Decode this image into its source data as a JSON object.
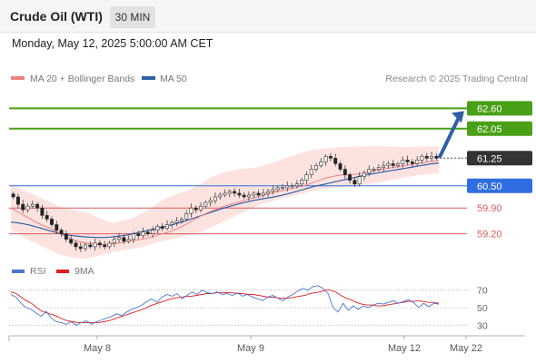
{
  "header": {
    "title": "Crude Oil (WTI)",
    "timeframe": "30 MIN"
  },
  "datetime": "Monday, May 12, 2025 5:00:00 AM CET",
  "legend": {
    "items": [
      {
        "label": "MA 20 + Bollinger Bands",
        "color": "#f08080"
      },
      {
        "label": "MA 50",
        "color": "#2f5fa7"
      }
    ],
    "copyright": "Research © 2025 Trading Central"
  },
  "rsi_legend": {
    "items": [
      {
        "label": "RSI",
        "color": "#4a74d4"
      },
      {
        "label": "9MA",
        "color": "#e02020"
      }
    ]
  },
  "chart_data": [
    {
      "type": "candlestick",
      "title": "Crude Oil (WTI)",
      "ylim": [
        58.7,
        63.2
      ],
      "levels": [
        {
          "value": 62.6,
          "label": "62.60",
          "kind": "resistance",
          "color": "#4aa017"
        },
        {
          "value": 62.05,
          "label": "62.05",
          "kind": "resistance",
          "color": "#4aa017"
        },
        {
          "value": 61.25,
          "label": "61.25",
          "kind": "last",
          "color": "#333333"
        },
        {
          "value": 60.5,
          "label": "60.50",
          "kind": "pivot",
          "color": "#2f6ee0"
        },
        {
          "value": 59.9,
          "label": "59.90",
          "kind": "support",
          "color": "#e05a5a"
        },
        {
          "value": 59.2,
          "label": "59.20",
          "kind": "support",
          "color": "#e05a5a"
        }
      ],
      "x_ticks": [
        "May 8",
        "May 9",
        "May 12",
        "May 22"
      ],
      "close": [
        60.2,
        60.0,
        59.85,
        59.95,
        60.0,
        59.9,
        59.7,
        59.6,
        59.45,
        59.3,
        59.2,
        59.05,
        58.95,
        58.85,
        58.8,
        58.9,
        58.85,
        58.95,
        58.9,
        58.85,
        58.95,
        59.05,
        59.1,
        59.0,
        59.05,
        59.2,
        59.15,
        59.25,
        59.2,
        59.3,
        59.4,
        59.35,
        59.45,
        59.5,
        59.55,
        59.6,
        59.75,
        59.9,
        59.85,
        59.95,
        60.05,
        60.1,
        60.2,
        60.25,
        60.3,
        60.35,
        60.3,
        60.25,
        60.2,
        60.25,
        60.3,
        60.25,
        60.3,
        60.35,
        60.4,
        60.45,
        60.45,
        60.5,
        60.5,
        60.55,
        60.65,
        60.8,
        60.95,
        61.05,
        61.15,
        61.3,
        61.25,
        61.1,
        60.95,
        60.8,
        60.65,
        60.55,
        60.75,
        60.85,
        60.95,
        60.95,
        61.0,
        61.05,
        61.1,
        61.05,
        61.1,
        61.2,
        61.15,
        61.1,
        61.2,
        61.3,
        61.25,
        61.3,
        61.25
      ],
      "ma20": [
        59.9,
        59.8,
        59.7,
        59.6,
        59.5,
        59.42,
        59.35,
        59.25,
        59.15,
        59.07,
        59.0,
        58.96,
        58.94,
        58.92,
        58.91,
        58.92,
        58.94,
        58.97,
        59.0,
        59.03,
        59.06,
        59.1,
        59.15,
        59.2,
        59.25,
        59.32,
        59.4,
        59.5,
        59.6,
        59.7,
        59.78,
        59.85,
        59.92,
        59.98,
        60.03,
        60.08,
        60.13,
        60.18,
        60.23,
        60.28,
        60.33,
        60.36,
        60.4,
        60.44,
        60.48,
        60.53,
        60.6,
        60.66,
        60.72,
        60.76,
        60.79,
        60.8,
        60.81,
        60.83,
        60.86,
        60.9,
        60.94,
        60.97,
        61.0,
        61.03,
        61.05,
        61.08,
        61.11,
        61.14,
        61.17,
        61.19
      ],
      "ma50": [
        59.52,
        59.5,
        59.47,
        59.43,
        59.38,
        59.33,
        59.28,
        59.23,
        59.19,
        59.16,
        59.14,
        59.12,
        59.11,
        59.1,
        59.1,
        59.11,
        59.13,
        59.15,
        59.18,
        59.22,
        59.26,
        59.3,
        59.34,
        59.38,
        59.42,
        59.47,
        59.52,
        59.58,
        59.64,
        59.7,
        59.76,
        59.82,
        59.88,
        59.93,
        59.98,
        60.03,
        60.07,
        60.11,
        60.14,
        60.17,
        60.2,
        60.24,
        60.28,
        60.33,
        60.38,
        60.43,
        60.48,
        60.52,
        60.56,
        60.6,
        60.64,
        60.68,
        60.72,
        60.76,
        60.8,
        60.83,
        60.86,
        60.89,
        60.92,
        60.95,
        60.98,
        61.01,
        61.04,
        61.07,
        61.1,
        61.12
      ],
      "bb_upper": [
        60.5,
        60.45,
        60.35,
        60.25,
        60.15,
        60.05,
        59.95,
        59.9,
        59.85,
        59.8,
        59.75,
        59.65,
        59.55,
        59.5,
        59.55,
        59.6,
        59.7,
        59.8,
        59.95,
        60.1,
        60.2,
        60.28,
        60.35,
        60.45,
        60.55,
        60.7,
        60.8,
        60.88,
        60.92,
        60.96,
        60.98,
        61.0,
        61.05,
        61.12,
        61.2,
        61.28,
        61.35,
        61.42,
        61.47,
        61.5,
        61.52,
        61.54,
        61.55,
        61.56,
        61.57,
        61.57,
        61.58,
        61.57,
        61.56,
        61.55,
        61.55,
        61.56,
        61.57,
        61.57,
        61.57
      ],
      "bb_lower": [
        59.3,
        59.2,
        59.05,
        58.95,
        58.85,
        58.75,
        58.65,
        58.6,
        58.55,
        58.52,
        58.55,
        58.6,
        58.66,
        58.72,
        58.75,
        58.78,
        58.82,
        58.88,
        58.95,
        59.0,
        59.05,
        59.1,
        59.15,
        59.2,
        59.25,
        59.35,
        59.45,
        59.55,
        59.65,
        59.75,
        59.85,
        59.95,
        60.02,
        60.08,
        60.15,
        60.2,
        60.25,
        60.3,
        60.35,
        60.4,
        60.42,
        60.45,
        60.45,
        60.48,
        60.52,
        60.55,
        60.58,
        60.62,
        60.66,
        60.7,
        60.74,
        60.77,
        60.8,
        60.82,
        60.84
      ]
    },
    {
      "type": "line",
      "title": "RSI",
      "ylim": [
        20,
        80
      ],
      "y_ticks": [
        70,
        50,
        30
      ],
      "series": [
        {
          "name": "RSI",
          "color": "#4a74d4",
          "values": [
            65,
            62,
            55,
            50,
            48,
            44,
            40,
            46,
            38,
            34,
            33,
            31,
            34,
            30,
            33,
            35,
            31,
            34,
            36,
            38,
            40,
            43,
            41,
            45,
            48,
            50,
            53,
            57,
            60,
            56,
            62,
            65,
            63,
            66,
            60,
            64,
            68,
            65,
            70,
            67,
            66,
            68,
            65,
            66,
            64,
            67,
            63,
            65,
            62,
            60,
            58,
            62,
            64,
            61,
            58,
            62,
            65,
            69,
            72,
            70,
            74,
            75,
            72,
            66,
            50,
            45,
            55,
            47,
            52,
            48,
            52,
            50,
            53,
            55,
            54,
            56,
            58,
            55,
            57,
            59,
            56,
            50,
            55,
            51,
            55,
            54
          ]
        },
        {
          "name": "9MA",
          "color": "#e02020",
          "values": [
            68,
            66,
            62,
            58,
            55,
            50,
            46,
            44,
            42,
            40,
            37,
            35,
            34,
            33,
            33,
            33,
            33,
            33,
            34,
            35,
            37,
            39,
            41,
            43,
            45,
            47,
            49,
            52,
            54,
            56,
            58,
            60,
            61,
            62,
            63,
            63,
            64,
            65,
            66,
            66,
            67,
            67,
            67,
            67,
            66,
            66,
            65,
            65,
            64,
            63,
            62,
            62,
            61,
            61,
            61,
            62,
            63,
            64,
            66,
            67,
            68,
            70,
            70,
            68,
            64,
            61,
            59,
            56,
            54,
            53,
            53,
            52,
            52,
            53,
            54,
            55,
            56,
            57,
            57,
            58,
            57,
            56,
            56,
            55
          ]
        }
      ]
    }
  ]
}
